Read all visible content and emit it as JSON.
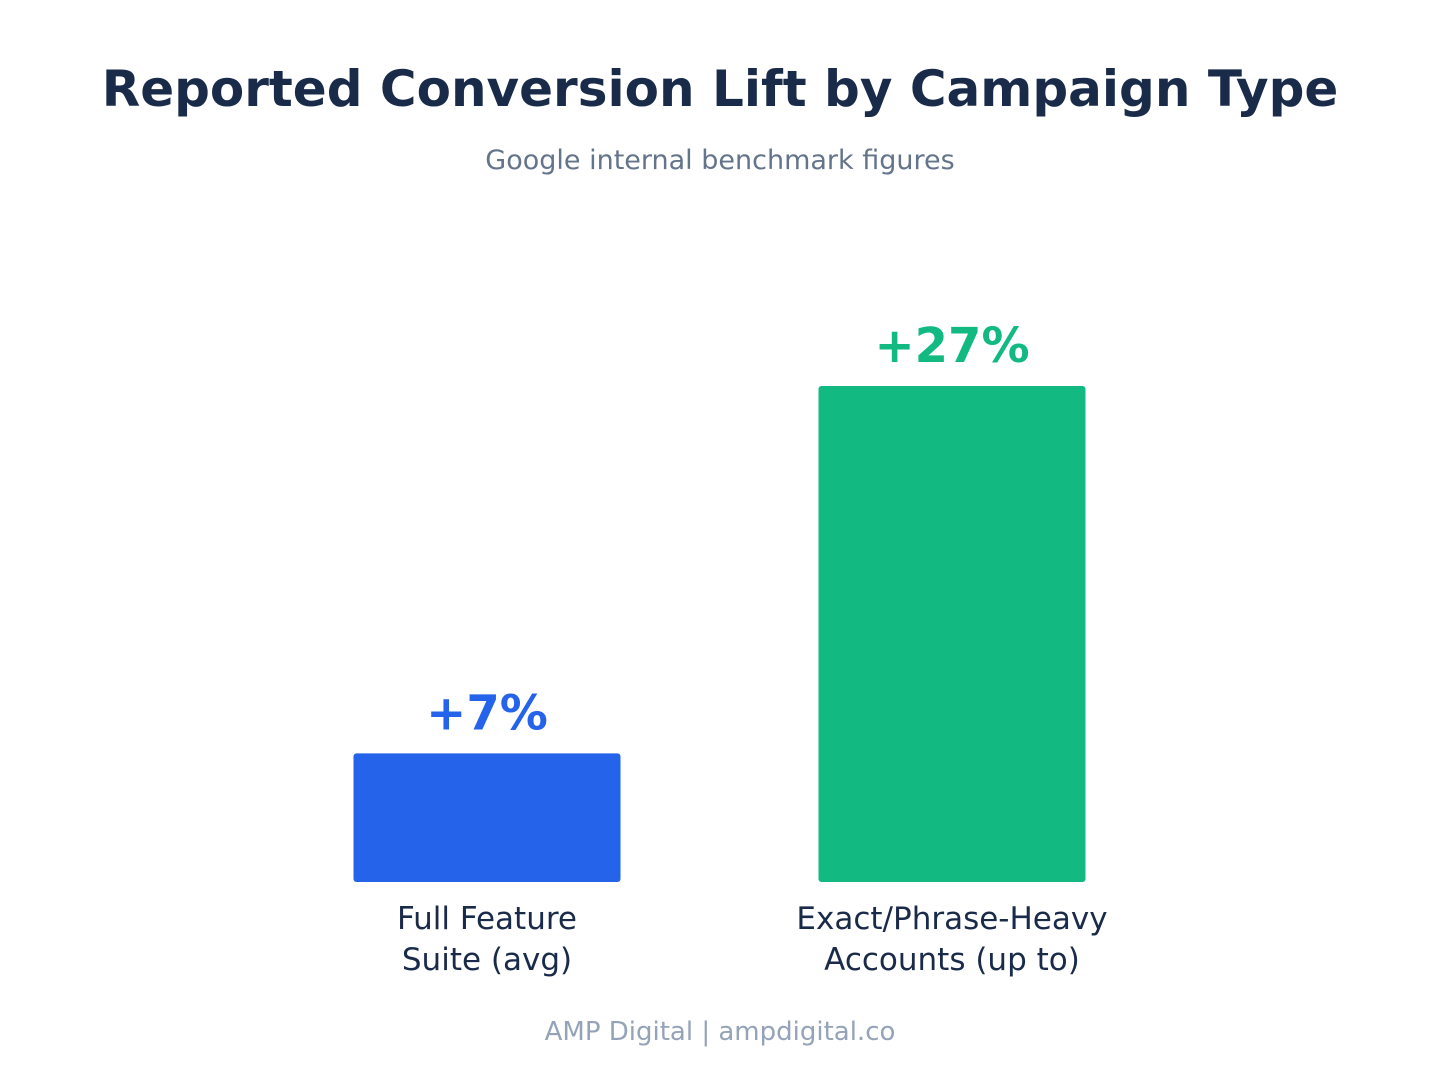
{
  "chart_data": {
    "type": "bar",
    "title": "Reported Conversion Lift by Campaign Type",
    "subtitle": "Google internal benchmark figures",
    "categories": [
      [
        "Full Feature",
        "Suite (avg)"
      ],
      [
        "Exact/Phrase-Heavy",
        "Accounts (up to)"
      ]
    ],
    "values": [
      7,
      27
    ],
    "value_labels": [
      "+7%",
      "+27%"
    ],
    "colors": [
      "#2563eb",
      "#12b981"
    ],
    "xlabel": "",
    "ylabel": "",
    "ylim": [
      0,
      27
    ],
    "grid": false,
    "legend": "none"
  },
  "footer": "AMP Digital | ampdigital.co"
}
